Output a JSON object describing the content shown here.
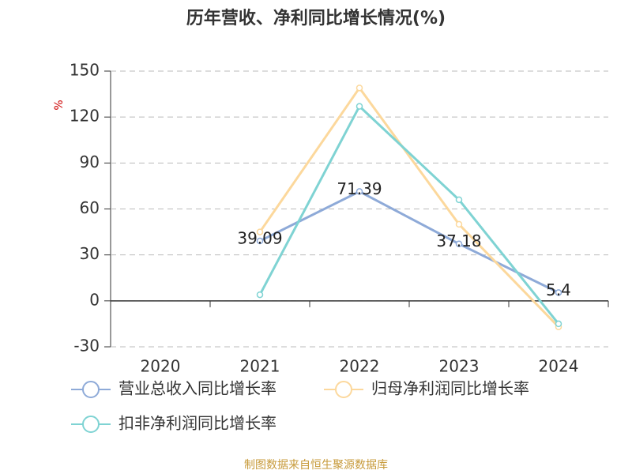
{
  "chart_data": {
    "type": "line",
    "title": "历年营收、净利同比增长情况(%)",
    "y_label": "%",
    "categories": [
      "2020",
      "2021",
      "2022",
      "2023",
      "2024"
    ],
    "series": [
      {
        "name": "营业总收入同比增长率",
        "color": "#8eaad8",
        "values": [
          null,
          39.09,
          71.39,
          37.18,
          5.4
        ],
        "show_labels": true
      },
      {
        "name": "归母净利润同比增长率",
        "color": "#fcd89c",
        "values": [
          null,
          45,
          139,
          50,
          -17
        ],
        "show_labels": false
      },
      {
        "name": "扣非净利润同比增长率",
        "color": "#7fd3d3",
        "values": [
          null,
          4,
          127,
          66,
          -15
        ],
        "show_labels": false
      }
    ],
    "ylim": [
      -30,
      150
    ],
    "yticks": [
      -30,
      0,
      30,
      60,
      90,
      120,
      150
    ],
    "grid": true,
    "legend": "bottom",
    "source": "制图数据来自恒生聚源数据库"
  }
}
